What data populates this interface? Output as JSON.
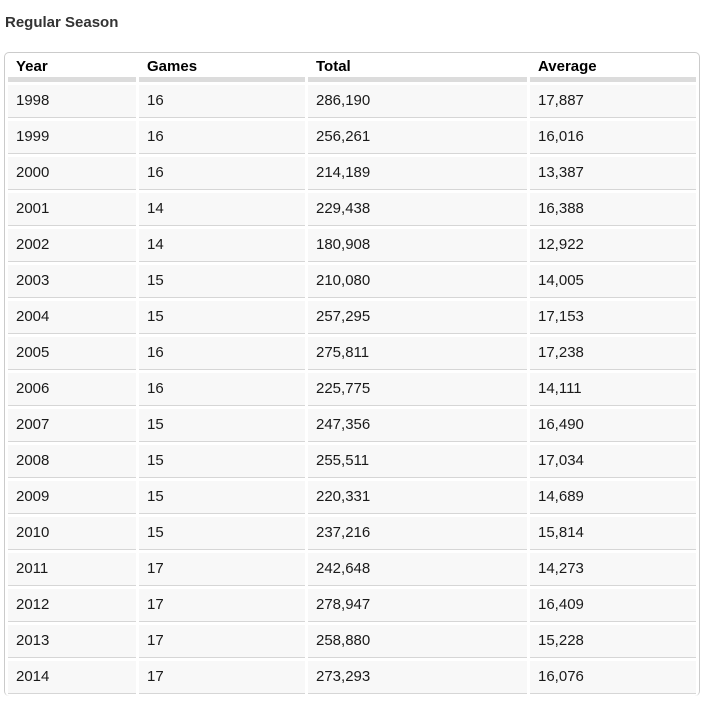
{
  "page": {
    "title": "Regular Season"
  },
  "table": {
    "columns": [
      "Year",
      "Games",
      "Total",
      "Average"
    ],
    "rows": [
      [
        "1998",
        "16",
        "286,190",
        "17,887"
      ],
      [
        "1999",
        "16",
        "256,261",
        "16,016"
      ],
      [
        "2000",
        "16",
        "214,189",
        "13,387"
      ],
      [
        "2001",
        "14",
        "229,438",
        "16,388"
      ],
      [
        "2002",
        "14",
        "180,908",
        "12,922"
      ],
      [
        "2003",
        "15",
        "210,080",
        "14,005"
      ],
      [
        "2004",
        "15",
        "257,295",
        "17,153"
      ],
      [
        "2005",
        "16",
        "275,811",
        "17,238"
      ],
      [
        "2006",
        "16",
        "225,775",
        "14,111"
      ],
      [
        "2007",
        "15",
        "247,356",
        "16,490"
      ],
      [
        "2008",
        "15",
        "255,511",
        "17,034"
      ],
      [
        "2009",
        "15",
        "220,331",
        "14,689"
      ],
      [
        "2010",
        "15",
        "237,216",
        "15,814"
      ],
      [
        "2011",
        "17",
        "242,648",
        "14,273"
      ],
      [
        "2012",
        "17",
        "278,947",
        "16,409"
      ],
      [
        "2013",
        "17",
        "258,880",
        "15,228"
      ],
      [
        "2014",
        "17",
        "273,293",
        "16,076"
      ]
    ]
  },
  "colors": {
    "row_background": "#f8f8f8",
    "outer_border": "#cbcbcb",
    "header_rule": "#dcdcdc",
    "row_rule": "#d6d6d6",
    "title_text": "#333333",
    "cell_text": "#1a1a1a"
  }
}
